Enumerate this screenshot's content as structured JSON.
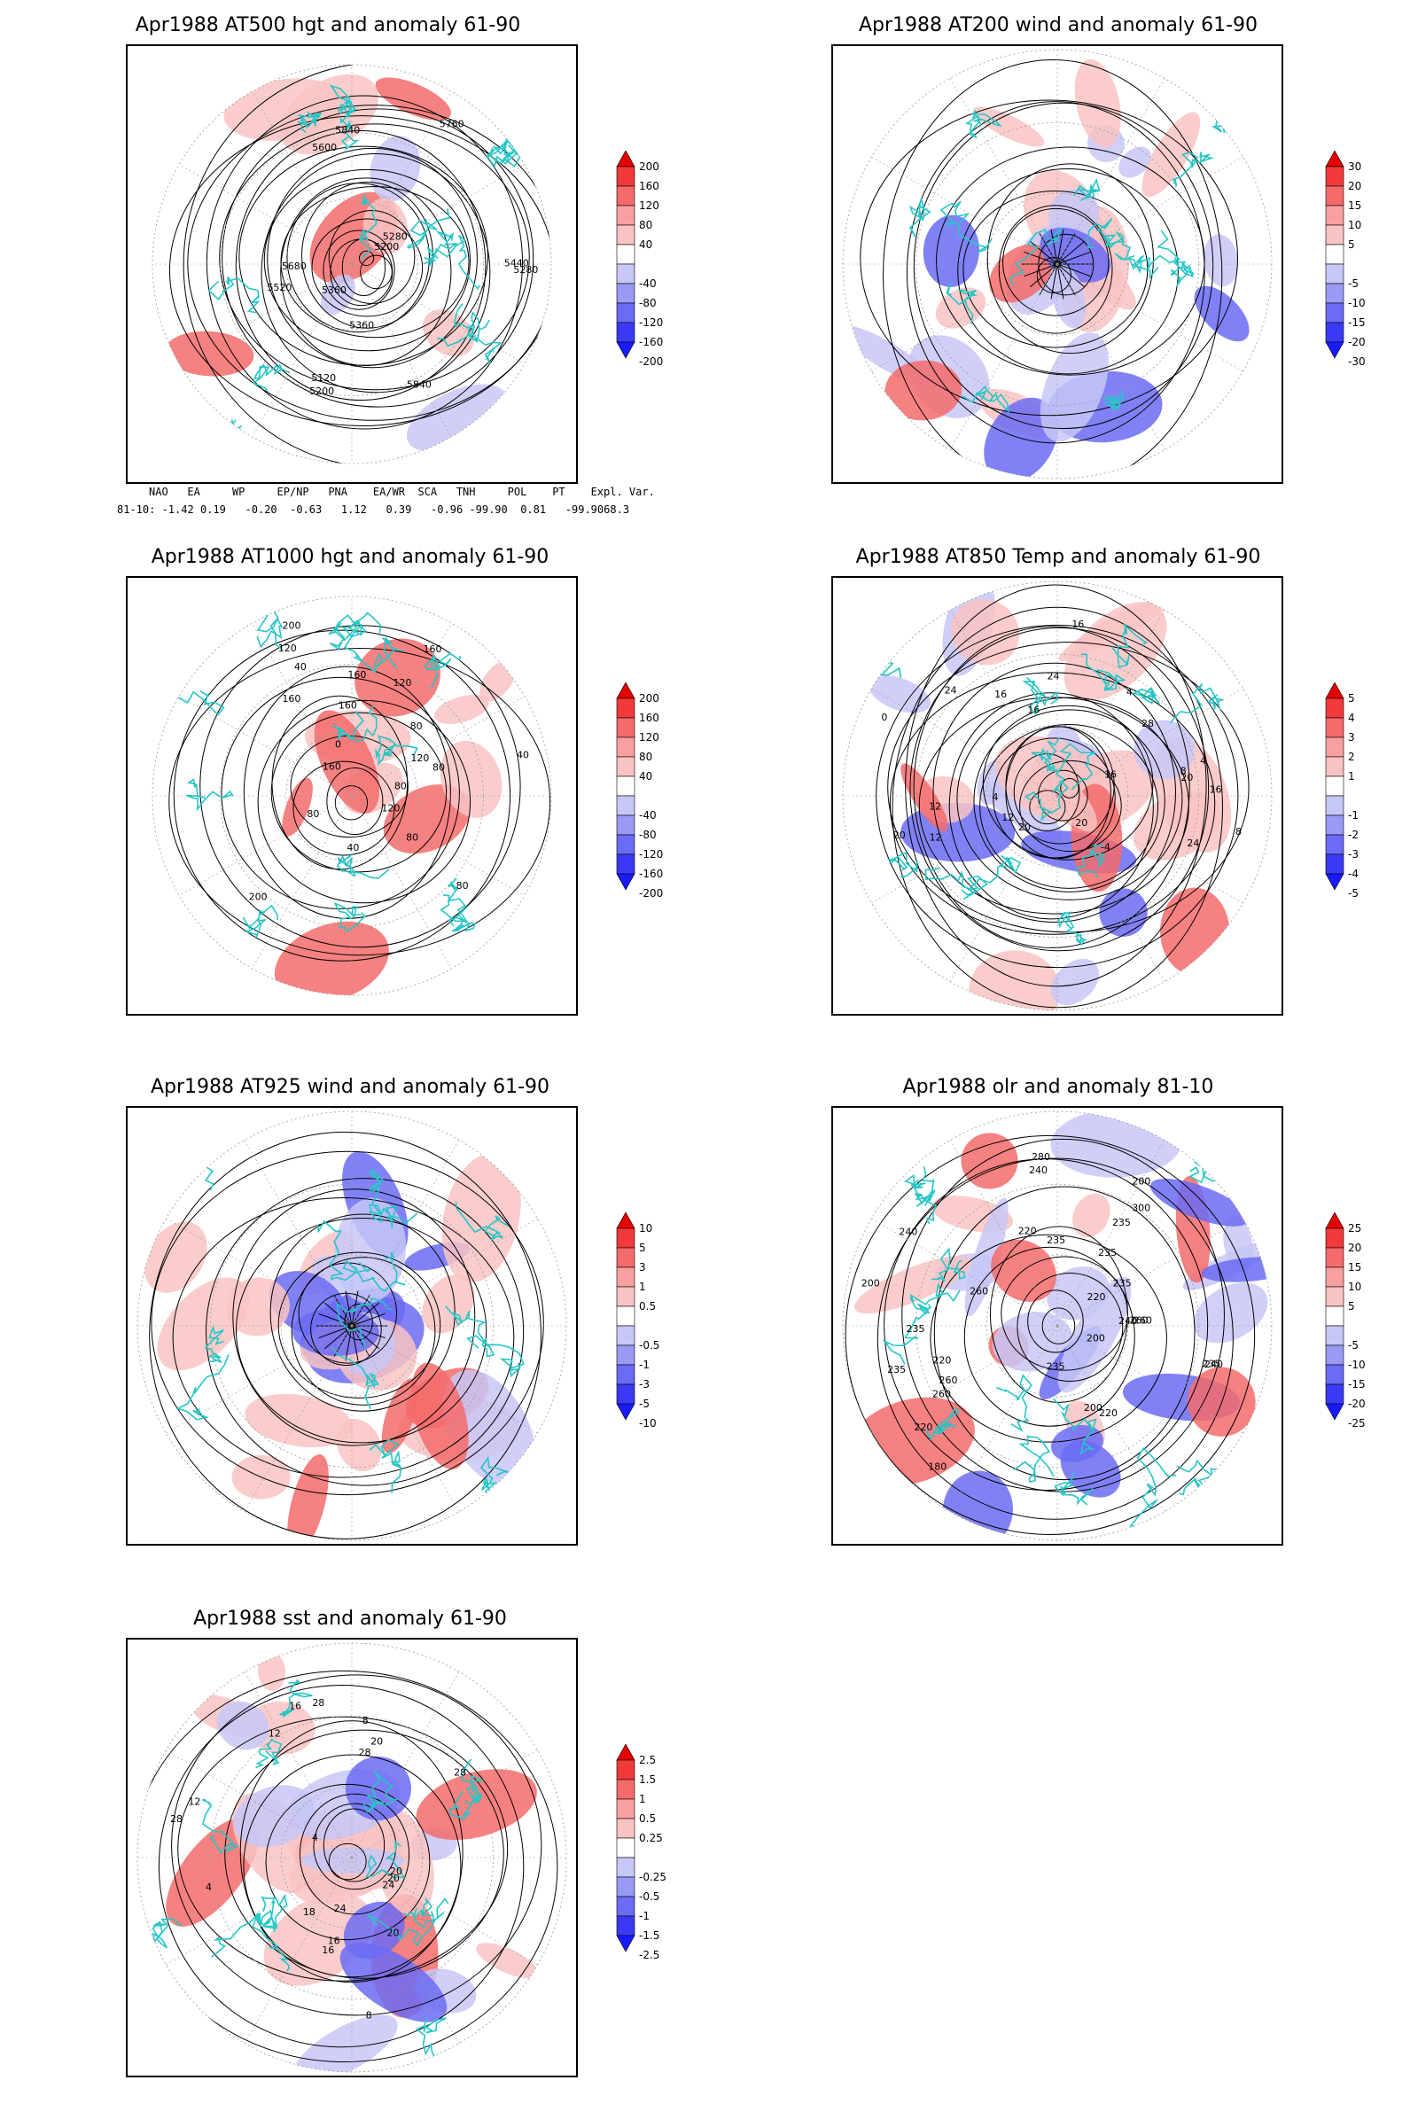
{
  "panels": [
    {
      "id": "p500",
      "title": "Apr1988 AT500 hgt and anomaly 61-90",
      "colorbar": [
        "200",
        "160",
        "120",
        "80",
        "40",
        "-40",
        "-80",
        "-120",
        "-160",
        "-200"
      ],
      "contour_labels": [
        "5840",
        "5360",
        "5280",
        "5200",
        "5200",
        "5120",
        "5280",
        "5360",
        "5440",
        "5520",
        "5600",
        "5680",
        "5760",
        "5840"
      ]
    },
    {
      "id": "p200",
      "title": "Apr1988 AT200 wind and anomaly 61-90",
      "colorbar": [
        "30",
        "20",
        "15",
        "10",
        "5",
        "-5",
        "-10",
        "-15",
        "-20",
        "-30"
      ],
      "contour_labels": []
    },
    {
      "id": "p1000",
      "title": "Apr1988 AT1000 hgt and anomaly 61-90",
      "colorbar": [
        "200",
        "160",
        "120",
        "80",
        "40",
        "-40",
        "-80",
        "-120",
        "-160",
        "-200"
      ],
      "contour_labels": [
        "120",
        "160",
        "200",
        "160",
        "80",
        "0",
        "40",
        "80",
        "120",
        "120",
        "160",
        "200",
        "80",
        "40",
        "120",
        "160",
        "160",
        "80",
        "80",
        "40",
        "80"
      ]
    },
    {
      "id": "p850",
      "title": "Apr1988 AT850 Temp and anomaly 61-90",
      "colorbar": [
        "5",
        "4",
        "3",
        "2",
        "1",
        "-1",
        "-2",
        "-3",
        "-4",
        "-5"
      ],
      "contour_labels": [
        "16",
        "16",
        "12",
        "16",
        "-4",
        "20",
        "16",
        "12",
        "8",
        "4",
        "4",
        "0",
        "24",
        "8",
        "12",
        "16",
        "20",
        "24",
        "28",
        "20",
        "24",
        "20",
        "4"
      ]
    },
    {
      "id": "p925",
      "title": "Apr1988 AT925 wind and anomaly 61-90",
      "colorbar": [
        "10",
        "5",
        "3",
        "1",
        "0.5",
        "-0.5",
        "-1",
        "-3",
        "-5",
        "-10"
      ],
      "contour_labels": []
    },
    {
      "id": "polr",
      "title": "Apr1988 olr and anomaly 81-10",
      "colorbar": [
        "25",
        "20",
        "15",
        "10",
        "5",
        "-5",
        "-10",
        "-15",
        "-20",
        "-25"
      ],
      "contour_labels": [
        "235",
        "240",
        "260",
        "220",
        "235",
        "260",
        "240",
        "235",
        "220",
        "200",
        "240",
        "260",
        "235",
        "235",
        "200",
        "180",
        "200",
        "220",
        "240",
        "260",
        "235",
        "280",
        "300",
        "260",
        "220",
        "200",
        "235",
        "235",
        "220"
      ]
    },
    {
      "id": "psst",
      "title": "Apr1988 sst and anomaly 61-90",
      "colorbar": [
        "2.5",
        "1.5",
        "1",
        "0.5",
        "0.25",
        "-0.25",
        "-0.5",
        "-1",
        "-1.5",
        "-2.5"
      ],
      "contour_labels": [
        "28",
        "28",
        "24",
        "20",
        "20",
        "16",
        "12",
        "8",
        "4",
        "28",
        "24",
        "16",
        "20",
        "12",
        "8",
        "4",
        "16",
        "18",
        "20",
        "28"
      ]
    }
  ],
  "teleconnection": {
    "headers": [
      "NAO",
      "EA",
      "WP",
      "EP/NP",
      "PNA",
      "EA/WR",
      "SCA",
      "TNH",
      "POL",
      "PT",
      "Expl. Var."
    ],
    "row_label": "81-10:",
    "values": [
      "-1.42",
      "0.19",
      "-0.20",
      "-0.63",
      "1.12",
      "0.39",
      "-0.96",
      "-99.90",
      "0.81",
      "-99.90",
      "68.3"
    ]
  },
  "colors": {
    "red_max": "#e60000",
    "red_light": "#f9c3c3",
    "blue_max": "#1a1aff",
    "blue_light": "#c7c7f7",
    "coastline": "#26c6c6",
    "contour": "#000000",
    "grid": "#9a9a9a"
  }
}
